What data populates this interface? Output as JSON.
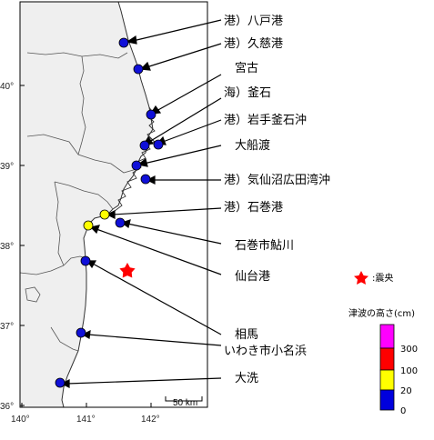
{
  "axes": {
    "lat_ticks": [
      "40°",
      "39°",
      "38°",
      "37°",
      "36°"
    ],
    "lon_ticks": [
      "140°",
      "141°",
      "142°"
    ]
  },
  "scale_bar": {
    "label": "50 km"
  },
  "stations": [
    {
      "label": "港）八戸港",
      "band": "0-20"
    },
    {
      "label": "港）久慈港",
      "band": "0-20"
    },
    {
      "label": "宮古",
      "band": "0-20"
    },
    {
      "label": "海）釜石",
      "band": "0-20"
    },
    {
      "label": "港）岩手釜石沖",
      "band": "0-20"
    },
    {
      "label": "大船渡",
      "band": "0-20"
    },
    {
      "label": "港）気仙沼広田湾沖",
      "band": "0-20"
    },
    {
      "label": "港）石巻港",
      "band": "20-100"
    },
    {
      "label": "石巻市鮎川",
      "band": "0-20"
    },
    {
      "label": "仙台港",
      "band": "20-100"
    },
    {
      "label": "相馬",
      "band": "0-20"
    },
    {
      "label": "いわき市小名浜",
      "band": "0-20"
    },
    {
      "label": "大洗",
      "band": "0-20"
    }
  ],
  "epicenter": {
    "label": ":震央",
    "color": "#ff0000"
  },
  "legend": {
    "title": "津波の高さ(cm)",
    "levels": [
      {
        "range": "300+",
        "color": "#ff00ff"
      },
      {
        "range": "100-300",
        "color": "#ff0000"
      },
      {
        "range": "20-100",
        "color": "#ffff00"
      },
      {
        "range": "0-20",
        "color": "#0000dd"
      }
    ],
    "tick_labels": [
      "300",
      "100",
      "20",
      "0"
    ]
  },
  "colors": {
    "land": "#efefef",
    "marker_blue": "#1010d8",
    "marker_yellow": "#ffff00"
  }
}
